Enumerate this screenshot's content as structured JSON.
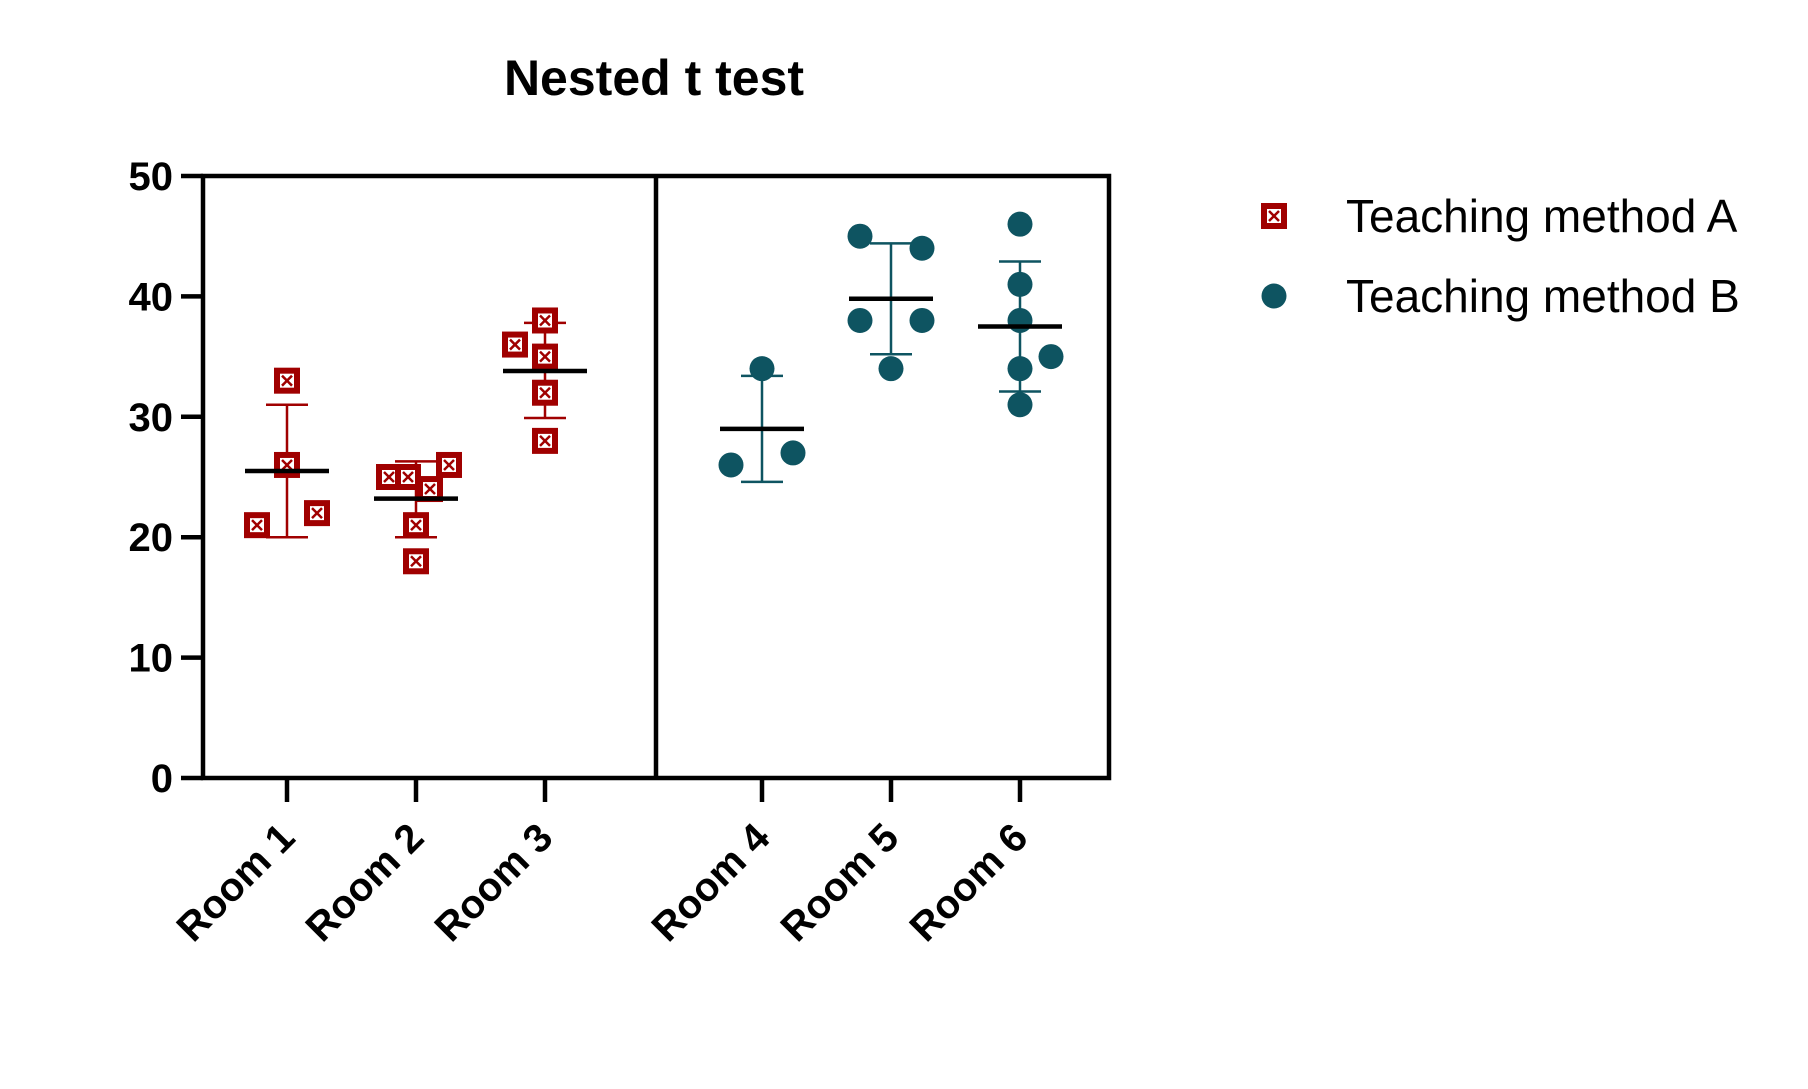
{
  "chart_data": {
    "type": "scatter",
    "title": "Nested t test",
    "xlabel": "",
    "ylabel": "",
    "ylim": [
      0,
      50
    ],
    "yticks": [
      "0",
      "10",
      "20",
      "30",
      "40",
      "50"
    ],
    "grid": false,
    "legend_position": "top-right",
    "categories": [
      "Room 1",
      "Room 2",
      "Room 3",
      "Room 4",
      "Room 5",
      "Room 6"
    ],
    "series": [
      {
        "name": "Teaching method  A",
        "color": "#a00000",
        "marker": "boxed-x-square",
        "groups": [
          {
            "category": "Room 1",
            "values": [
              21,
              33,
              26,
              22
            ],
            "mean": 25.5,
            "sd_low": 20.0,
            "sd_high": 31.0
          },
          {
            "category": "Room 2",
            "values": [
              25,
              25,
              18,
              21,
              24,
              26
            ],
            "mean": 23.2,
            "sd_low": 20.0,
            "sd_high": 26.3
          },
          {
            "category": "Room 3",
            "values": [
              36,
              38,
              35,
              32,
              28
            ],
            "mean": 33.8,
            "sd_low": 29.9,
            "sd_high": 37.8
          }
        ]
      },
      {
        "name": "Teaching method B",
        "color": "#0e5461",
        "marker": "circle",
        "groups": [
          {
            "category": "Room 4",
            "values": [
              26,
              34,
              27
            ],
            "mean": 29.0,
            "sd_low": 24.6,
            "sd_high": 33.4
          },
          {
            "category": "Room 5",
            "values": [
              45,
              38,
              34,
              38,
              44
            ],
            "mean": 39.8,
            "sd_low": 35.2,
            "sd_high": 44.4
          },
          {
            "category": "Room 6",
            "values": [
              46,
              41,
              38,
              34,
              31,
              35
            ],
            "mean": 37.5,
            "sd_low": 32.1,
            "sd_high": 42.9
          }
        ]
      }
    ]
  }
}
